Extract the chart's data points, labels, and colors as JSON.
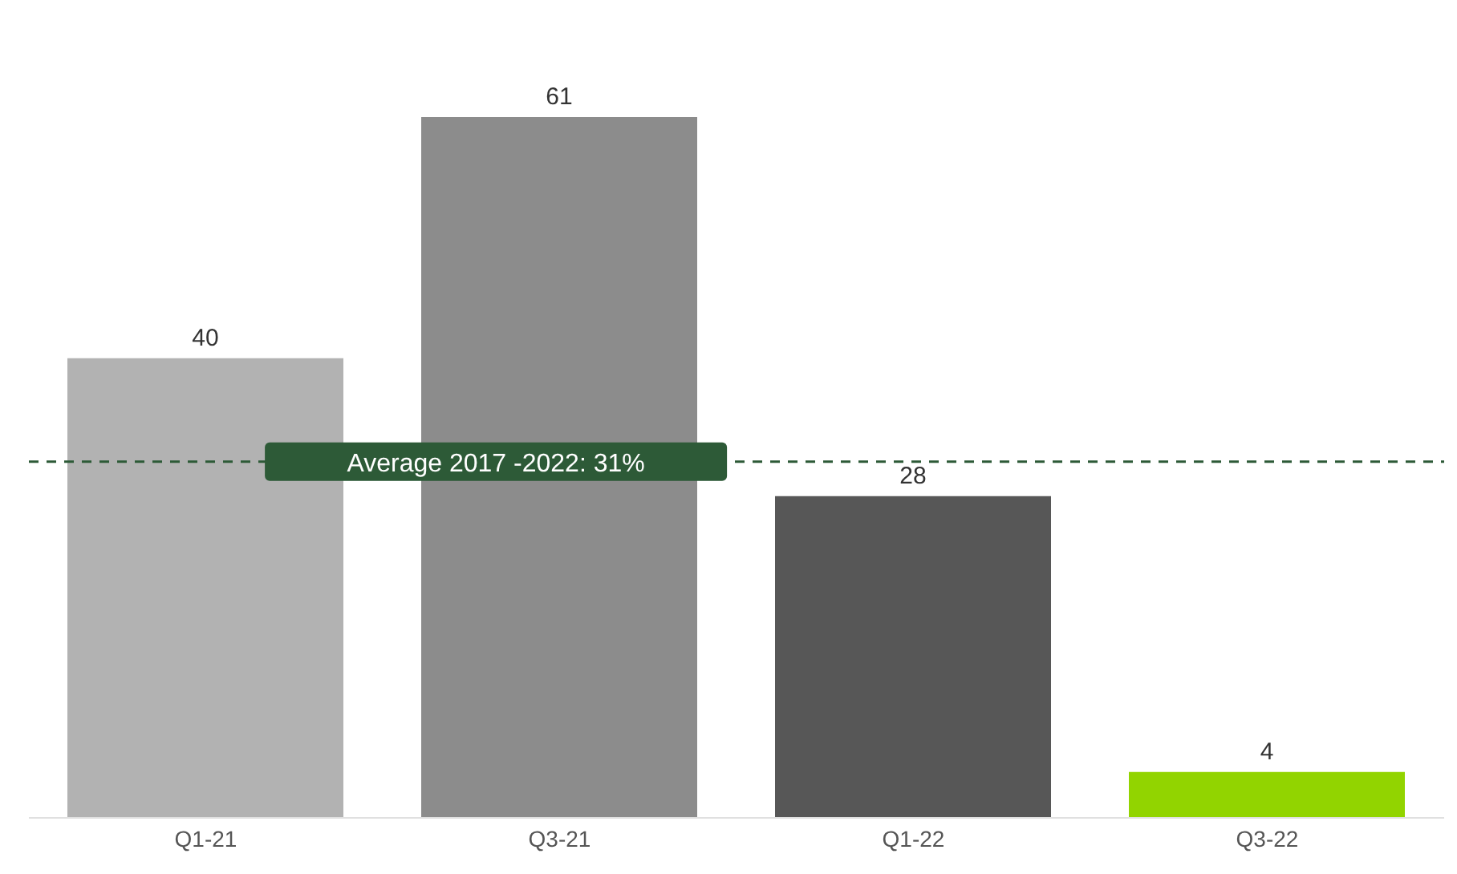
{
  "chart_data": {
    "type": "bar",
    "categories": [
      "Q1-21",
      "Q3-21",
      "Q1-22",
      "Q3-22"
    ],
    "values": [
      40,
      61,
      28,
      4
    ],
    "colors": [
      "#b2b2b2",
      "#8c8c8c",
      "#575757",
      "#92d400"
    ],
    "data_labels": true,
    "ref_lines": [
      {
        "axis": "y",
        "value": 31,
        "label": "Average 2017 -2022: 31%",
        "color": "#2d5a37",
        "line_style": "dashed"
      }
    ],
    "grid": false
  }
}
